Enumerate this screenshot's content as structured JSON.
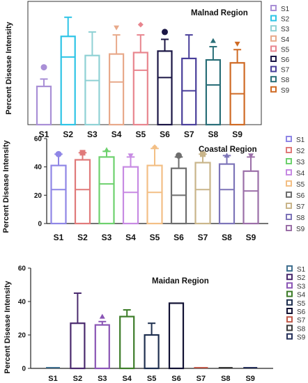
{
  "y_axis_label": "Percent Disease Intensity",
  "chart_data": [
    {
      "type": "box",
      "title": "Malnad Region",
      "xlabel": "",
      "ylabel": "Percent Disease Intensity",
      "ylim": [
        0,
        80
      ],
      "y_ticks": [],
      "categories": [
        "S1",
        "S2",
        "S3",
        "S4",
        "S5",
        "S6",
        "S7",
        "S8",
        "S9"
      ],
      "legend": [
        "S1",
        "S2",
        "S3",
        "S4",
        "S5",
        "S6",
        "S7",
        "S8",
        "S9"
      ],
      "legend_position": "right",
      "colors": [
        "#a98fd6",
        "#2ec4e6",
        "#8fd1d4",
        "#e8a98a",
        "#e8858e",
        "#1b1645",
        "#4a3f9a",
        "#2a6f78",
        "#cf6a24"
      ],
      "series": [
        {
          "name": "S1",
          "min": 0,
          "q1": 0,
          "median": 0,
          "q3": 26,
          "max": 31,
          "outlier": 39,
          "marker": "circle"
        },
        {
          "name": "S2",
          "min": 0,
          "q1": 0,
          "median": 46,
          "q3": 60,
          "max": 73,
          "outlier": null,
          "marker": null
        },
        {
          "name": "S3",
          "min": 0,
          "q1": 0,
          "median": 30,
          "q3": 47,
          "max": 63,
          "outlier": null,
          "marker": null
        },
        {
          "name": "S4",
          "min": 0,
          "q1": 0,
          "median": 29,
          "q3": 48,
          "max": 61,
          "outlier": 66,
          "marker": "triangle-down"
        },
        {
          "name": "S5",
          "min": 0,
          "q1": 0,
          "median": 37,
          "q3": 49,
          "max": 61,
          "outlier": 68,
          "marker": "diamond"
        },
        {
          "name": "S6",
          "min": 0,
          "q1": 0,
          "median": 32,
          "q3": 50,
          "max": 58,
          "outlier": 63,
          "marker": "circle"
        },
        {
          "name": "S7",
          "min": 0,
          "q1": 0,
          "median": 23,
          "q3": 45,
          "max": 61,
          "outlier": null,
          "marker": null
        },
        {
          "name": "S8",
          "min": 0,
          "q1": 0,
          "median": 27,
          "q3": 44,
          "max": 53,
          "outlier": 57,
          "marker": "triangle"
        },
        {
          "name": "S9",
          "min": 0,
          "q1": 0,
          "median": 21,
          "q3": 42,
          "max": 51,
          "outlier": 55,
          "marker": "triangle-down"
        }
      ]
    },
    {
      "type": "box",
      "title": "Coastal Region",
      "xlabel": "",
      "ylabel": "Percent Disease Intensity",
      "ylim": [
        0,
        60
      ],
      "y_ticks": [
        0,
        20,
        40,
        60
      ],
      "categories": [
        "S1",
        "S2",
        "S3",
        "S4",
        "S5",
        "S6",
        "S7",
        "S8",
        "S9"
      ],
      "legend": [
        "S1",
        "S2",
        "S3",
        "S4",
        "S5",
        "S6",
        "S7",
        "S8",
        "S9"
      ],
      "legend_position": "right",
      "colors": [
        "#8f86e6",
        "#e07a7a",
        "#6dd16d",
        "#c78ae3",
        "#f3bf85",
        "#6e6e6e",
        "#c9b58a",
        "#7d74b8",
        "#9b6fa8"
      ],
      "series": [
        {
          "name": "S1",
          "min": 0,
          "q1": 0,
          "median": 24,
          "q3": 41,
          "max": 49,
          "outlier": 49,
          "marker": "circle"
        },
        {
          "name": "S2",
          "min": 0,
          "q1": 0,
          "median": 24,
          "q3": 45,
          "max": 50,
          "outlier": 50,
          "marker": "square"
        },
        {
          "name": "S3",
          "min": 0,
          "q1": 0,
          "median": 28,
          "q3": 47,
          "max": 51,
          "outlier": 52,
          "marker": "triangle"
        },
        {
          "name": "S4",
          "min": 0,
          "q1": 0,
          "median": 22,
          "q3": 40,
          "max": 47,
          "outlier": 48,
          "marker": "triangle-down"
        },
        {
          "name": "S5",
          "min": 0,
          "q1": 0,
          "median": 22,
          "q3": 41,
          "max": 53,
          "outlier": 54,
          "marker": "diamond"
        },
        {
          "name": "S6",
          "min": 0,
          "q1": 0,
          "median": 20,
          "q3": 39,
          "max": 47,
          "outlier": 48,
          "marker": "circle"
        },
        {
          "name": "S7",
          "min": 0,
          "q1": 0,
          "median": 24,
          "q3": 43,
          "max": 49,
          "outlier": 49,
          "marker": "square"
        },
        {
          "name": "S8",
          "min": 0,
          "q1": 0,
          "median": 24,
          "q3": 42,
          "max": 48,
          "outlier": 48,
          "marker": "triangle"
        },
        {
          "name": "S9",
          "min": 0,
          "q1": 0,
          "median": 23,
          "q3": 37,
          "max": 47,
          "outlier": 48,
          "marker": "triangle-down"
        }
      ]
    },
    {
      "type": "box",
      "title": "Maidan Region",
      "xlabel": "",
      "ylabel": "Percent Disease Intensity",
      "ylim": [
        0,
        60
      ],
      "y_ticks": [
        0,
        20,
        40,
        60
      ],
      "categories": [
        "S1",
        "S2",
        "S3",
        "S4",
        "S5",
        "S6",
        "S7",
        "S8",
        "S9"
      ],
      "legend": [
        "S1",
        "S2",
        "S3",
        "S4",
        "S5",
        "S6",
        "S7",
        "S8",
        "S9"
      ],
      "legend_position": "right",
      "colors": [
        "#3f6f8f",
        "#4a2a6e",
        "#8a55b5",
        "#3e7d2a",
        "#1e2f4f",
        "#111133",
        "#c05a4a",
        "#3a3a3a",
        "#25305a"
      ],
      "series": [
        {
          "name": "S1",
          "min": 0,
          "q1": 0,
          "median": 0,
          "q3": 0,
          "max": 0,
          "outlier": null,
          "marker": null
        },
        {
          "name": "S2",
          "min": 0,
          "q1": 0,
          "median": 0,
          "q3": 27,
          "max": 45,
          "outlier": null,
          "marker": null
        },
        {
          "name": "S3",
          "min": 0,
          "q1": 0,
          "median": 0,
          "q3": 26,
          "max": 28,
          "outlier": 31,
          "marker": "triangle"
        },
        {
          "name": "S4",
          "min": 0,
          "q1": 0,
          "median": 0,
          "q3": 31,
          "max": 35,
          "outlier": null,
          "marker": null
        },
        {
          "name": "S5",
          "min": 0,
          "q1": 0,
          "median": 0,
          "q3": 20,
          "max": 27,
          "outlier": null,
          "marker": null
        },
        {
          "name": "S6",
          "min": 0,
          "q1": 0,
          "median": 0,
          "q3": 39,
          "max": 39,
          "outlier": null,
          "marker": null
        },
        {
          "name": "S7",
          "min": 0,
          "q1": 0,
          "median": 0,
          "q3": 0,
          "max": 0,
          "outlier": null,
          "marker": null
        },
        {
          "name": "S8",
          "min": 0,
          "q1": 0,
          "median": 0,
          "q3": 0,
          "max": 0,
          "outlier": null,
          "marker": null
        },
        {
          "name": "S9",
          "min": 0,
          "q1": 0,
          "median": 0,
          "q3": 0,
          "max": 0,
          "outlier": null,
          "marker": null
        }
      ]
    }
  ]
}
